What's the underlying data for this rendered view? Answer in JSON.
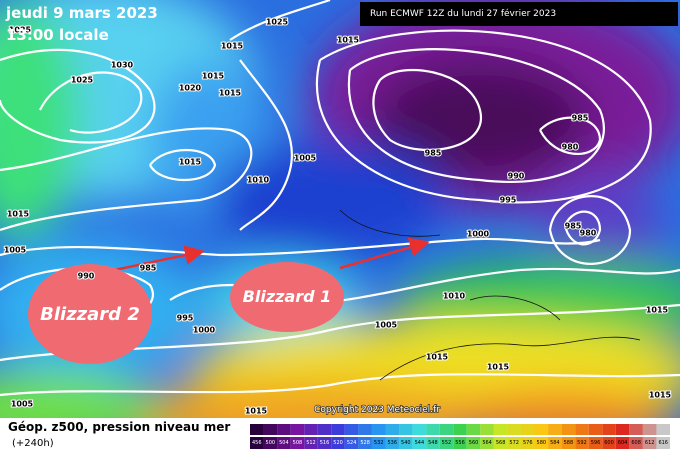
{
  "header": {
    "date": "jeudi 9 mars 2023",
    "time": "13:00 locale",
    "run": "Run ECMWF 12Z du lundi 27 février 2023"
  },
  "annotations": [
    "Blizzard 2",
    "Blizzard 1"
  ],
  "isobar_labels": [
    1025,
    1015,
    1030,
    1025,
    1015,
    1020,
    1015,
    1015,
    1025,
    1015,
    1005,
    1010,
    1015,
    1005,
    990,
    985,
    995,
    1000,
    985,
    990,
    995,
    985,
    980,
    985,
    980,
    1000,
    1010,
    1005,
    1015,
    1015,
    1015,
    1005,
    1015,
    1015
  ],
  "copyright": "Copyright 2023 Meteociel.fr",
  "legend": {
    "title": "Géop. z500, pression niveau mer",
    "lead": "(+240h)",
    "scale": [
      456,
      500,
      504,
      508,
      512,
      516,
      520,
      524,
      528,
      532,
      536,
      540,
      544,
      548,
      552,
      556,
      560,
      564,
      568,
      572,
      576,
      580,
      584,
      588,
      592,
      596,
      600,
      604,
      608,
      612,
      616
    ]
  }
}
